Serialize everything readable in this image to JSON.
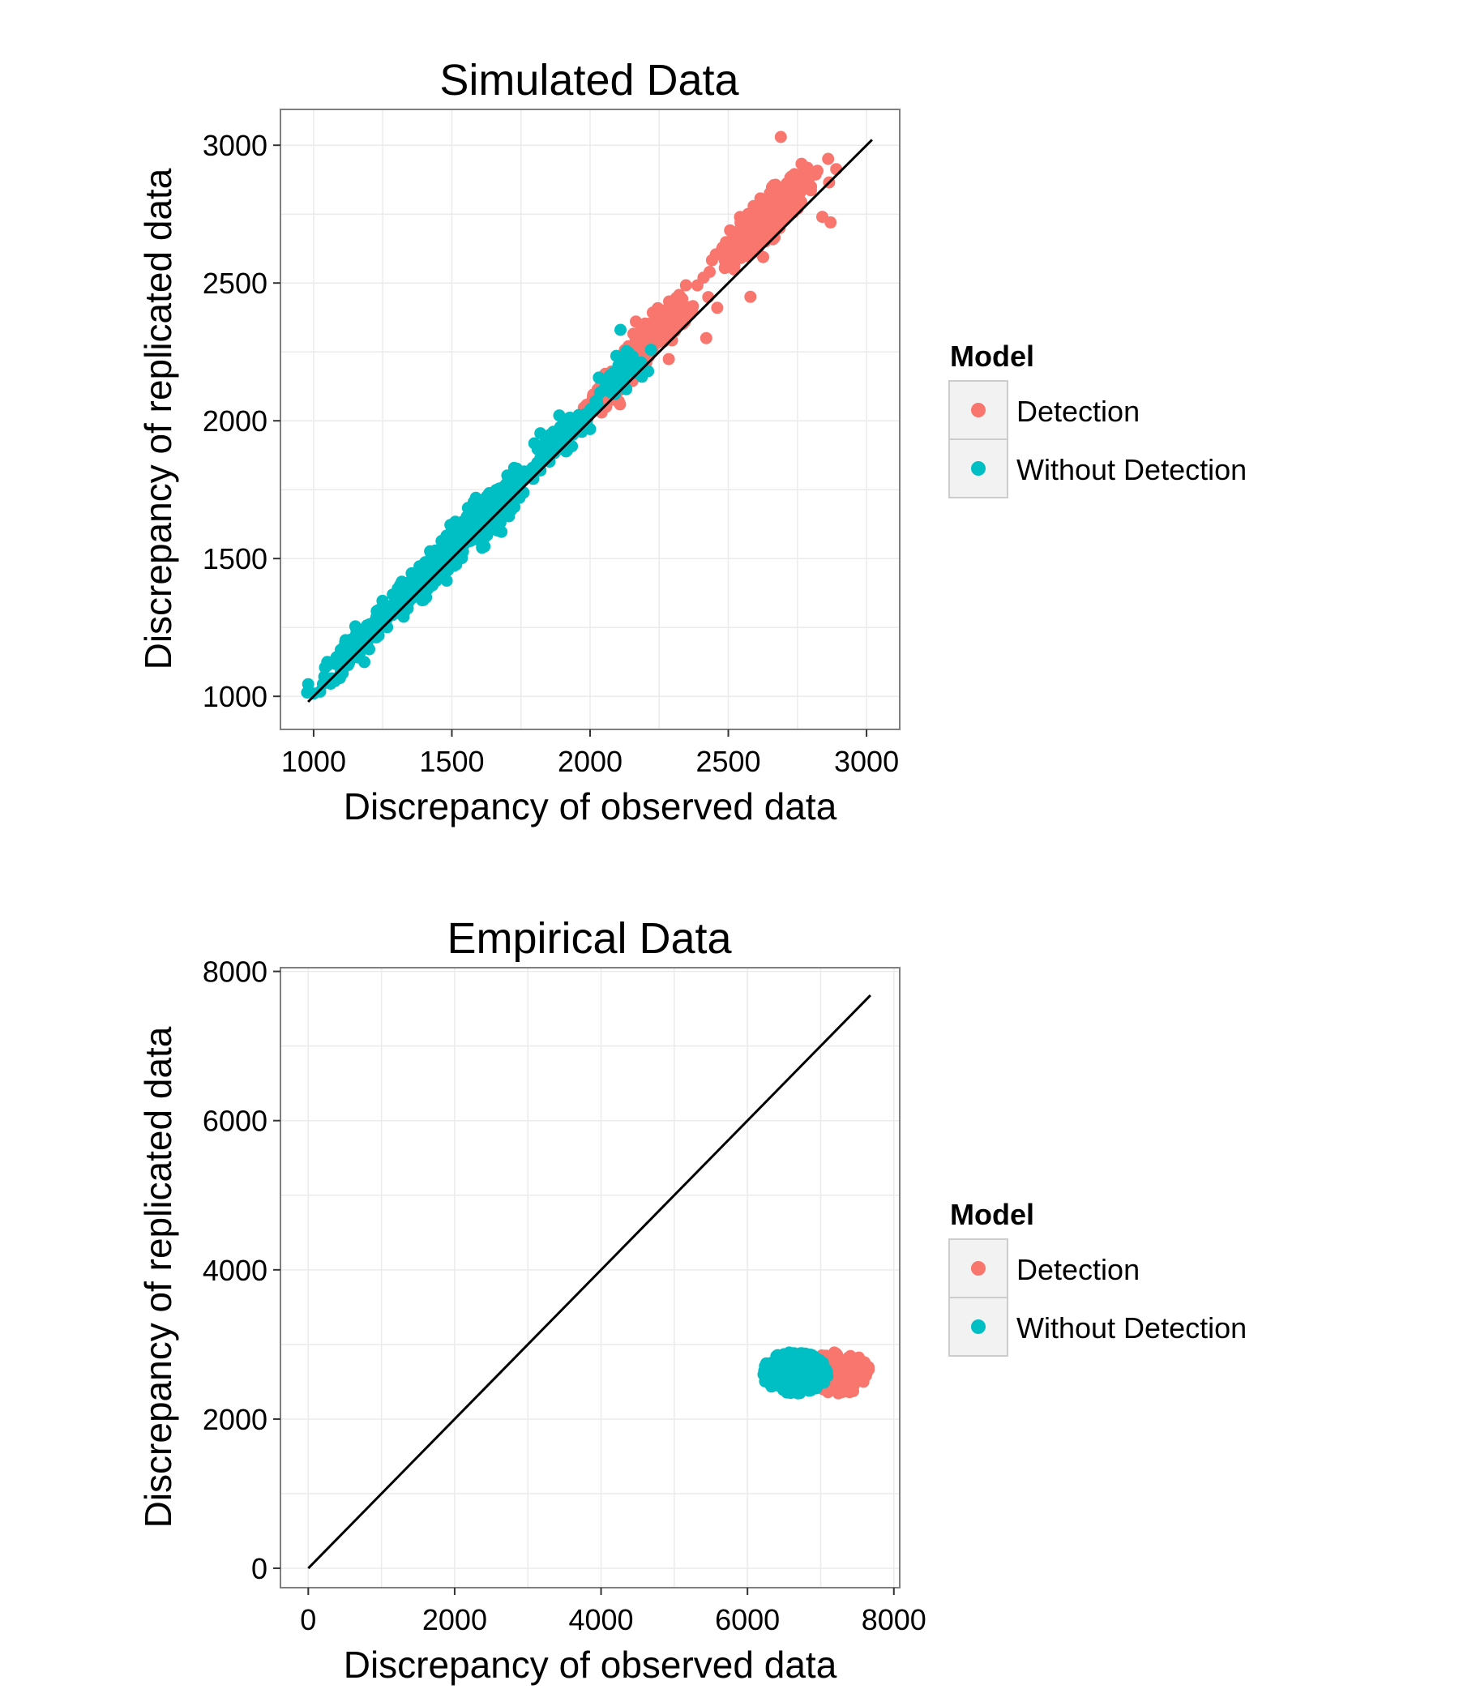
{
  "colors": {
    "detection": "#F8766D",
    "without_detection": "#00BFC4",
    "panel_border": "#7f7f7f",
    "grid": "#ebebeb",
    "identity_line": "#000000"
  },
  "chart_data": [
    {
      "type": "scatter",
      "title": "Simulated Data",
      "xlabel": "Discrepancy of observed data",
      "ylabel": "Discrepancy of replicated data",
      "xlim": [
        880,
        3120
      ],
      "ylim": [
        880,
        3130
      ],
      "xticks": [
        1000,
        1500,
        2000,
        2500,
        3000
      ],
      "yticks": [
        1000,
        1500,
        2000,
        2500,
        3000
      ],
      "xtick_labels": [
        "1000",
        "1500",
        "2000",
        "2500",
        "3000"
      ],
      "ytick_labels": [
        "1000",
        "1500",
        "2000",
        "2500",
        "3000"
      ],
      "grid": true,
      "identity_line": {
        "from": [
          980,
          980
        ],
        "to": [
          3020,
          3020
        ]
      },
      "legend": {
        "title": "Model",
        "position": "right",
        "entries": [
          "Detection",
          "Without Detection"
        ]
      },
      "series": [
        {
          "name": "Detection",
          "color": "#F8766D",
          "clusters": [
            {
              "cx": 2640,
              "cy": 2740,
              "along": 200,
              "across": 50,
              "n": 340
            },
            {
              "cx": 2250,
              "cy": 2330,
              "along": 160,
              "across": 45,
              "n": 220
            },
            {
              "cx": 2050,
              "cy": 2080,
              "along": 80,
              "across": 45,
              "n": 60
            }
          ],
          "points": [
            [
              2690,
              3030
            ],
            [
              2840,
              2740
            ],
            [
              2870,
              2720
            ],
            [
              2580,
              2450
            ],
            [
              2420,
              2300
            ],
            [
              2460,
              2410
            ]
          ]
        },
        {
          "name": "Without Detection",
          "color": "#00BFC4",
          "clusters": [
            {
              "cx": 1150,
              "cy": 1180,
              "along": 150,
              "across": 40,
              "n": 140
            },
            {
              "cx": 1400,
              "cy": 1430,
              "along": 180,
              "across": 45,
              "n": 200
            },
            {
              "cx": 1650,
              "cy": 1690,
              "along": 180,
              "across": 50,
              "n": 200
            },
            {
              "cx": 1880,
              "cy": 1930,
              "along": 110,
              "across": 40,
              "n": 100
            },
            {
              "cx": 2110,
              "cy": 2160,
              "along": 90,
              "across": 40,
              "n": 70
            }
          ],
          "points": [
            [
              1000,
              1010
            ],
            [
              2110,
              2330
            ],
            [
              2210,
              2180
            ],
            [
              1970,
              1960
            ],
            [
              2000,
              1970
            ]
          ]
        }
      ]
    },
    {
      "type": "scatter",
      "title": "Empirical Data",
      "xlabel": "Discrepancy of observed data",
      "ylabel": "Discrepancy of replicated data",
      "xlim": [
        -380,
        8080
      ],
      "ylim": [
        -260,
        8050
      ],
      "xticks": [
        0,
        2000,
        4000,
        6000,
        8000
      ],
      "yticks": [
        0,
        2000,
        4000,
        6000,
        8000
      ],
      "xtick_labels": [
        "0",
        "2000",
        "4000",
        "6000",
        "8000"
      ],
      "ytick_labels": [
        "0",
        "2000",
        "4000",
        "6000",
        "8000"
      ],
      "grid": true,
      "identity_line": {
        "from": [
          0,
          0
        ],
        "to": [
          7680,
          7680
        ]
      },
      "legend": {
        "title": "Model",
        "position": "right",
        "entries": [
          "Detection",
          "Without Detection"
        ]
      },
      "series": [
        {
          "name": "Detection",
          "color": "#F8766D",
          "blob": {
            "cx": 7250,
            "cy": 2620,
            "rx": 420,
            "ry": 280,
            "n": 160
          }
        },
        {
          "name": "Without Detection",
          "color": "#00BFC4",
          "blob": {
            "cx": 6650,
            "cy": 2620,
            "rx": 450,
            "ry": 280,
            "n": 240
          }
        }
      ]
    }
  ]
}
